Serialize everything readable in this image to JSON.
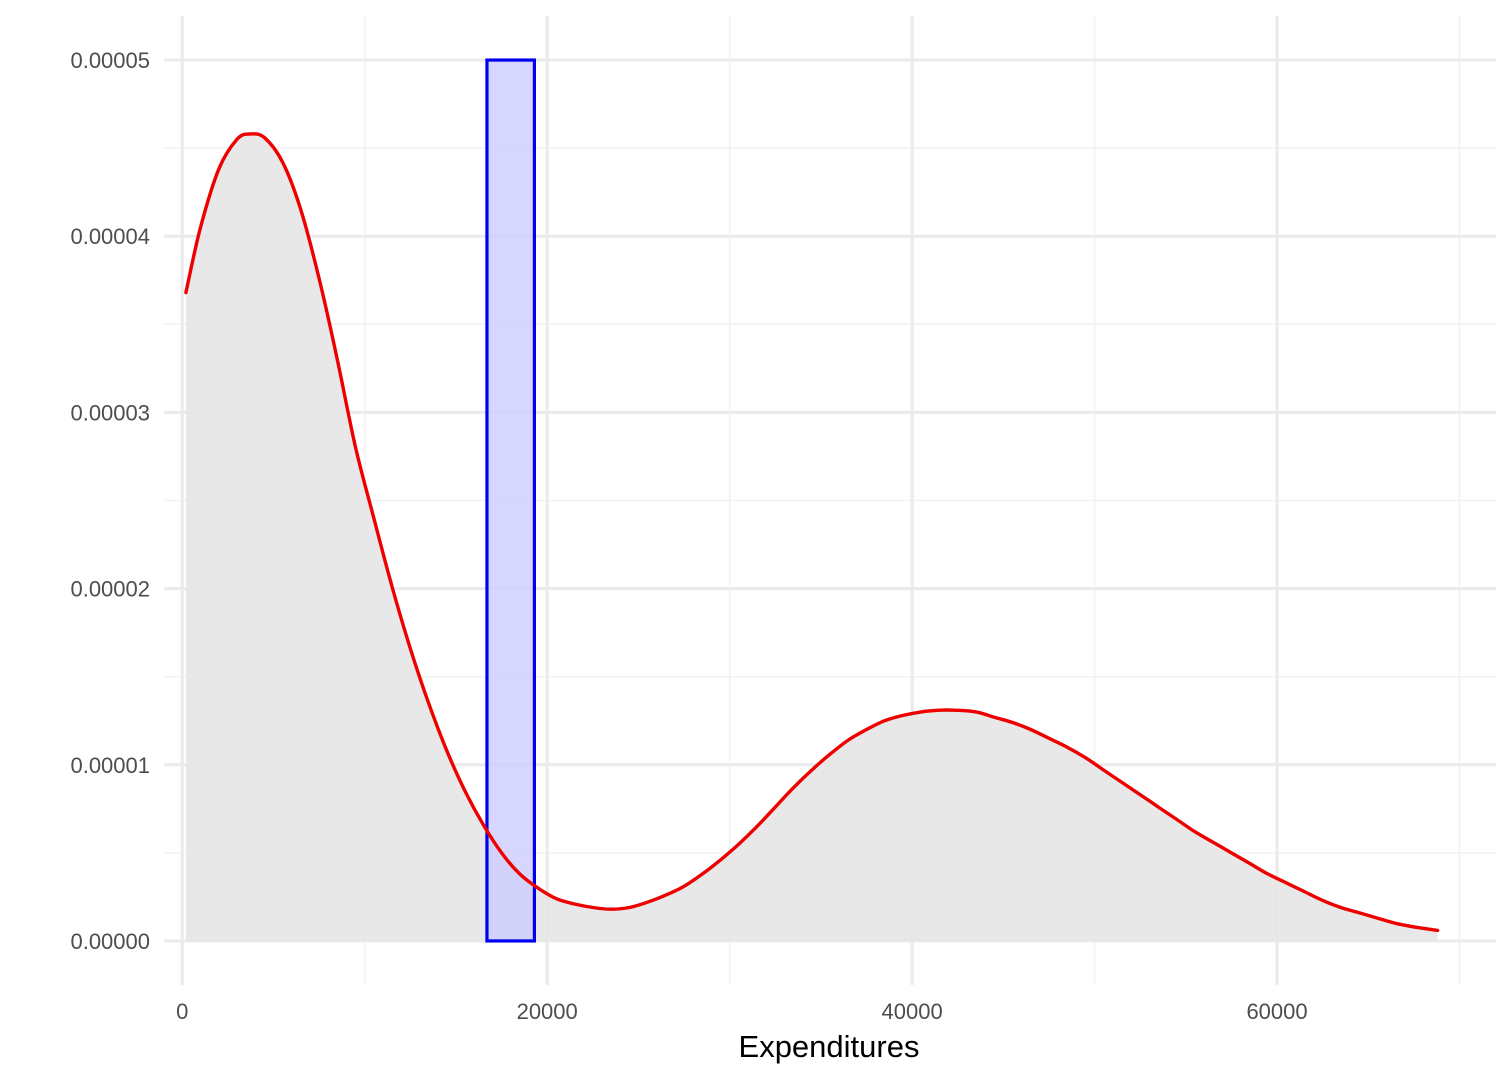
{
  "chart_data": {
    "type": "area",
    "title": "",
    "xlabel": "Expenditures",
    "ylabel": "",
    "xlim": [
      -1000,
      72000
    ],
    "ylim": [
      -2.5e-06,
      5.25e-05
    ],
    "x_ticks": [
      0,
      20000,
      40000,
      60000
    ],
    "x_tick_labels": [
      "0",
      "20000",
      "40000",
      "60000"
    ],
    "x_minor_ticks": [
      10000,
      30000,
      50000,
      70000
    ],
    "y_ticks": [
      0,
      1e-05,
      2e-05,
      3e-05,
      4e-05,
      5e-05
    ],
    "y_tick_labels": [
      "0.00000",
      "0.00001",
      "0.00002",
      "0.00003",
      "0.00004",
      "0.00005"
    ],
    "y_minor_ticks": [
      5e-06,
      1.5e-05,
      2.5e-05,
      3.5e-05,
      4.5e-05
    ],
    "grid": true,
    "series": [
      {
        "type": "density",
        "x": [
          200,
          1000,
          2000,
          3000,
          3700,
          4500,
          5500,
          6500,
          7500,
          8500,
          9500,
          10500,
          11500,
          12500,
          13500,
          14500,
          15500,
          16500,
          17500,
          18500,
          19500,
          20500,
          21500,
          22500,
          23500,
          24500,
          25500,
          26500,
          27500,
          28500,
          29500,
          30500,
          31500,
          32500,
          33500,
          34500,
          35500,
          36500,
          37500,
          38500,
          39500,
          40500,
          41500,
          42300,
          43500,
          44500,
          45500,
          46500,
          47500,
          48500,
          49500,
          50500,
          51500,
          52500,
          53500,
          54500,
          55500,
          56500,
          57500,
          58500,
          59500,
          60500,
          61500,
          62500,
          63500,
          64500,
          65500,
          66500,
          67500,
          68800
        ],
        "y": [
          3.68e-05,
          4.05e-05,
          4.38e-05,
          4.55e-05,
          4.58e-05,
          4.56e-05,
          4.42e-05,
          4.15e-05,
          3.76e-05,
          3.3e-05,
          2.8e-05,
          2.4e-05,
          2.01e-05,
          1.66e-05,
          1.35e-05,
          1.08e-05,
          8.5e-06,
          6.6e-06,
          5e-06,
          3.8e-06,
          3e-06,
          2.4e-06,
          2.1e-06,
          1.9e-06,
          1.8e-06,
          1.9e-06,
          2.2e-06,
          2.6e-06,
          3.1e-06,
          3.8e-06,
          4.6e-06,
          5.5e-06,
          6.5e-06,
          7.6e-06,
          8.7e-06,
          9.7e-06,
          1.06e-05,
          1.14e-05,
          1.2e-05,
          1.25e-05,
          1.28e-05,
          1.3e-05,
          1.31e-05,
          1.31e-05,
          1.3e-05,
          1.27e-05,
          1.24e-05,
          1.2e-05,
          1.15e-05,
          1.1e-05,
          1.04e-05,
          9.7e-06,
          9e-06,
          8.3e-06,
          7.6e-06,
          6.9e-06,
          6.2e-06,
          5.6e-06,
          5e-06,
          4.4e-06,
          3.8e-06,
          3.3e-06,
          2.8e-06,
          2.3e-06,
          1.9e-06,
          1.6e-06,
          1.3e-06,
          1e-06,
          8e-07,
          6e-07
        ],
        "fill": "#e6e6e6",
        "line_color": "#ee0000"
      }
    ],
    "highlight_rect": {
      "x_range": [
        16700,
        19300
      ],
      "y_range": [
        0,
        5e-05
      ],
      "fill": "#ccccff",
      "fill_opacity": 0.8,
      "stroke": "#0000ee"
    }
  }
}
